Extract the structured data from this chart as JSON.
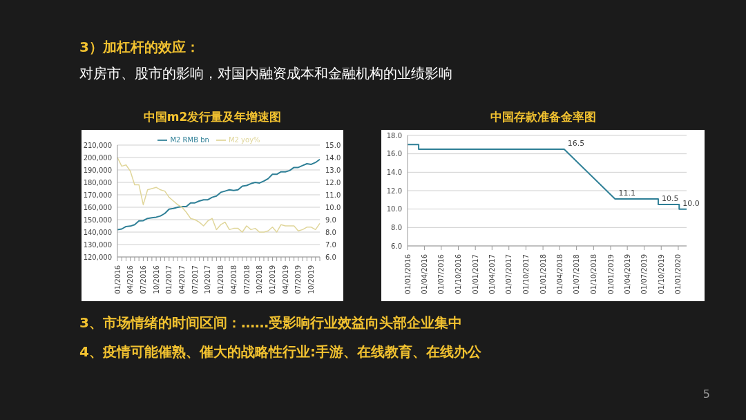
{
  "chart_data": [
    {
      "type": "line",
      "title": "中国m2发行量及年增速图",
      "annotations": [
        "3）加杠杆的效应：",
        "对房市、股市的影响，对国内融资成本和金融机构的业绩影响"
      ],
      "categories": [
        "01/2016",
        null,
        null,
        "04/2016",
        null,
        null,
        "07/2016",
        null,
        null,
        "10/2016",
        null,
        null,
        "01/2017",
        null,
        null,
        "04/2017",
        null,
        null,
        "07/2017",
        null,
        null,
        "10/2017",
        null,
        null,
        "01/2018",
        null,
        null,
        "04/2018",
        null,
        null,
        "07/2018",
        null,
        null,
        "10/2018",
        null,
        null,
        "01/2019",
        null,
        null,
        "04/2019",
        null,
        null,
        "07/2019",
        null,
        null,
        "10/2019",
        null,
        null
      ],
      "series": [
        {
          "name": "M2 RMB bn",
          "color": "#2e7f96",
          "values": [
            142000,
            142500,
            144500,
            144800,
            146000,
            149000,
            149200,
            151000,
            151500,
            152000,
            153000,
            155000,
            158500,
            159000,
            160000,
            160500,
            160500,
            163500,
            163500,
            165000,
            166000,
            166000,
            168000,
            169000,
            172000,
            173000,
            174000,
            173500,
            174000,
            177000,
            177500,
            179000,
            180000,
            179500,
            181000,
            183000,
            186500,
            186500,
            188500,
            188500,
            189500,
            192000,
            192000,
            193500,
            195000,
            194500,
            196000,
            198500
          ]
        },
        {
          "name": "M2 yoy%",
          "color": "#e0d69a",
          "axis": "y2",
          "values": [
            14.0,
            13.3,
            13.4,
            12.9,
            11.8,
            11.8,
            10.2,
            11.4,
            11.5,
            11.6,
            11.4,
            11.3,
            10.8,
            10.5,
            10.2,
            10.0,
            9.6,
            9.1,
            9.0,
            8.8,
            8.5,
            8.9,
            9.1,
            8.2,
            8.6,
            8.8,
            8.2,
            8.3,
            8.3,
            8.0,
            8.5,
            8.2,
            8.3,
            8.0,
            8.0,
            8.1,
            8.4,
            8.0,
            8.6,
            8.5,
            8.5,
            8.5,
            8.1,
            8.2,
            8.4,
            8.4,
            8.2,
            8.7
          ]
        }
      ],
      "ylim": [
        120000,
        210000
      ],
      "yticks": [
        {
          "value": 120000,
          "label": "120,000"
        },
        {
          "value": 130000,
          "label": "130,000"
        },
        {
          "value": 140000,
          "label": "140,000"
        },
        {
          "value": 150000,
          "label": "150,000"
        },
        {
          "value": 160000,
          "label": "160,000"
        },
        {
          "value": 170000,
          "label": "170,000"
        },
        {
          "value": 180000,
          "label": "180,000"
        },
        {
          "value": 190000,
          "label": "190,000"
        },
        {
          "value": 200000,
          "label": "200,000"
        },
        {
          "value": 210000,
          "label": "210,000"
        }
      ],
      "y2lim": [
        6,
        15
      ],
      "y2ticks": [
        {
          "value": 6,
          "label": "6.0"
        },
        {
          "value": 7,
          "label": "7.0"
        },
        {
          "value": 8,
          "label": "8.0"
        },
        {
          "value": 9,
          "label": "9.0"
        },
        {
          "value": 10,
          "label": "10.0"
        },
        {
          "value": 11,
          "label": "11.0"
        },
        {
          "value": 12,
          "label": "12.0"
        },
        {
          "value": 13,
          "label": "13.0"
        },
        {
          "value": 14,
          "label": "14.0"
        },
        {
          "value": 15,
          "label": "15.0"
        }
      ],
      "grid": "y",
      "legend": "top",
      "marker": "none"
    },
    {
      "type": "line",
      "title": "中国存款准备金率图",
      "annotations": [
        {
          "text": "16.5",
          "x": "2018-04-25",
          "y": 16.5
        },
        {
          "text": "11.1",
          "x": "2019-01-25",
          "y": 11.1
        },
        {
          "text": "10.5",
          "x": "2019-09-15",
          "y": 10.5
        },
        {
          "text": "10.0",
          "x": "2020-01-06",
          "y": 10.0
        },
        "3、市场情绪的时间区间：……受影响行业效益向头部企业集中",
        "4、疫情可能催熟、催大的战略性行业:手游、在线教育、在线办公",
        "5"
      ],
      "x": [
        "2016-01-01",
        "2016-03-01",
        "2016-03-01",
        "2018-04-25",
        "2019-01-25",
        "2019-09-15",
        "2019-09-15",
        "2020-01-06",
        "2020-01-06",
        "2020-02-15"
      ],
      "series": [
        {
          "color": "#2e7f96",
          "values": [
            17.0,
            17.0,
            16.5,
            16.5,
            11.1,
            11.1,
            10.5,
            10.5,
            10.0,
            10.0
          ]
        }
      ],
      "xlim": [
        "2016-01-01",
        "2020-02-15"
      ],
      "xticks": [
        {
          "value": "2016-01-01",
          "label": "01/01/2016"
        },
        {
          "value": "2016-04-01",
          "label": "01/04/2016"
        },
        {
          "value": "2016-07-01",
          "label": "01/07/2016"
        },
        {
          "value": "2016-10-01",
          "label": "01/10/2016"
        },
        {
          "value": "2017-01-01",
          "label": "01/01/2017"
        },
        {
          "value": "2017-04-01",
          "label": "01/04/2017"
        },
        {
          "value": "2017-07-01",
          "label": "01/07/2017"
        },
        {
          "value": "2017-10-01",
          "label": "01/10/2017"
        },
        {
          "value": "2018-01-01",
          "label": "01/01/2018"
        },
        {
          "value": "2018-04-01",
          "label": "01/04/2018"
        },
        {
          "value": "2018-07-01",
          "label": "01/07/2018"
        },
        {
          "value": "2018-10-01",
          "label": "01/10/2018"
        },
        {
          "value": "2019-01-01",
          "label": "01/01/2019"
        },
        {
          "value": "2019-04-01",
          "label": "01/04/2019"
        },
        {
          "value": "2019-07-01",
          "label": "01/07/2019"
        },
        {
          "value": "2019-10-01",
          "label": "01/10/2019"
        },
        {
          "value": "2020-01-01",
          "label": "01/01/2020"
        }
      ],
      "ylim": [
        6,
        18
      ],
      "yticks": [
        {
          "value": 6,
          "label": "6.0"
        },
        {
          "value": 8,
          "label": "8.0"
        },
        {
          "value": 10,
          "label": "10.0"
        },
        {
          "value": 12,
          "label": "12.0"
        },
        {
          "value": 14,
          "label": "14.0"
        },
        {
          "value": 16,
          "label": "16.0"
        },
        {
          "value": 18,
          "label": "18.0"
        }
      ],
      "grid": "y",
      "legend": false,
      "marker": "none"
    }
  ]
}
